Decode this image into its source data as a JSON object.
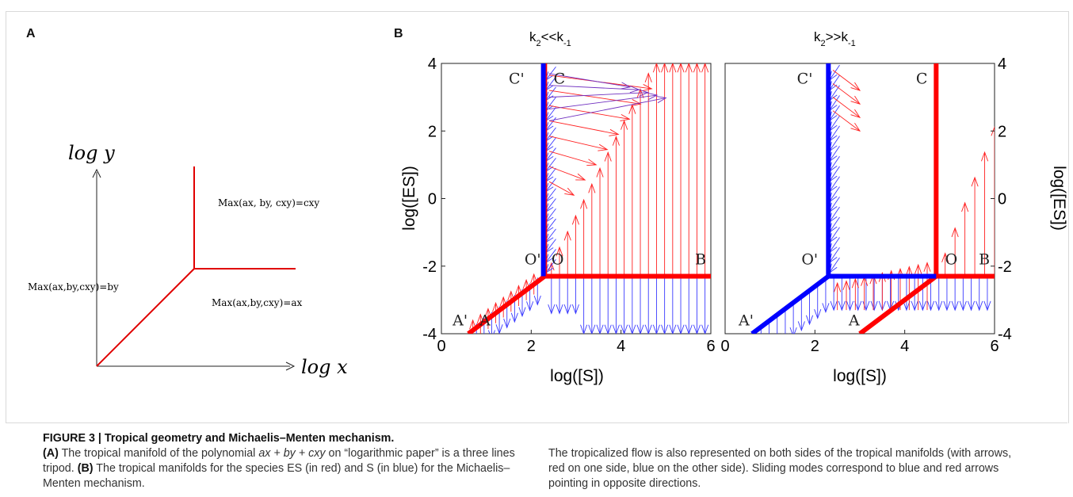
{
  "figure": {
    "panel_a_letter": "A",
    "panel_b_letter": "B",
    "caption_title": "FIGURE 3 | Tropical geometry and Michaelis–Menten mechanism.",
    "caption_a_label": "(A)",
    "caption_a_text_1": " The tropical manifold of the polynomial ",
    "caption_a_poly": "ax + by + cxy",
    "caption_a_text_2": " on “logarithmic paper” is a three lines tripod. ",
    "caption_b_label": "(B)",
    "caption_b_text": " The tropical manifolds for the species ES (in red) and S (in blue) for the Michaelis–Menten mechanism.",
    "caption_right": "The tropicalized flow is also represented on both sides of the tropical manifolds (with arrows, red on one side, blue on the other side). Sliding modes correspond to blue and red arrows pointing in opposite directions."
  },
  "panel_a": {
    "y_axis_label": "log y",
    "x_axis_label": "log x",
    "label_cxy": "Max(ax, by, cxy)=cxy",
    "label_by": "Max(ax,by,cxy)=by",
    "label_ax": "Max(ax,by,cxy)=ax",
    "line_color": "#e00000"
  },
  "chart_data": [
    {
      "type": "line",
      "title": "k2<<k-1",
      "title_main": "k",
      "title_sub1": "2",
      "title_rel": "<<k",
      "title_sub2": "-1",
      "xlabel": "log([S])",
      "ylabel": "log([ES])",
      "xlim": [
        0,
        6
      ],
      "ylim": [
        -4,
        4
      ],
      "xticks": [
        "0",
        "2",
        "4",
        "6"
      ],
      "yticks": [
        "-4",
        "-2",
        "0",
        "2",
        "4"
      ],
      "series": [
        {
          "color": "#ff0000",
          "x": [
            0.6,
            2.3,
            2.3,
            6
          ],
          "y": [
            -4,
            -2.3,
            4,
            -2.3
          ],
          "segments": [
            [
              [
                0.6,
                -4
              ],
              [
                2.3,
                -2.3
              ]
            ],
            [
              [
                2.3,
                -2.3
              ],
              [
                2.3,
                4
              ]
            ],
            [
              [
                2.3,
                -2.3
              ],
              [
                6,
                -2.3
              ]
            ]
          ]
        },
        {
          "color": "#0000ff",
          "x": [
            2.27,
            2.27
          ],
          "y": [
            -2.3,
            4
          ]
        }
      ],
      "points": [
        {
          "label": "C'",
          "x": 1.5,
          "y": 3.4
        },
        {
          "label": "C",
          "x": 2.5,
          "y": 3.4
        },
        {
          "label": "O'",
          "x": 1.85,
          "y": -1.95
        },
        {
          "label": "O",
          "x": 2.45,
          "y": -1.95
        },
        {
          "label": "B",
          "x": 5.65,
          "y": -1.95
        },
        {
          "label": "A'",
          "x": 0.25,
          "y": -3.75
        },
        {
          "label": "A",
          "x": 0.85,
          "y": -3.75
        }
      ]
    },
    {
      "type": "line",
      "title": "k2>>k-1",
      "title_main": "k",
      "title_sub1": "2",
      "title_rel": ">>k",
      "title_sub2": "-1",
      "xlabel": "log([S])",
      "ylabel": "log([ES])",
      "xlim": [
        0,
        6
      ],
      "ylim": [
        -4,
        4
      ],
      "xticks": [
        "0",
        "2",
        "4",
        "6"
      ],
      "yticks": [
        "-4",
        "-2",
        "0",
        "2",
        "4"
      ],
      "series": [
        {
          "color": "#ff0000",
          "segments": [
            [
              [
                3.0,
                -4
              ],
              [
                4.7,
                -2.3
              ]
            ],
            [
              [
                4.7,
                -2.3
              ],
              [
                4.7,
                4
              ]
            ],
            [
              [
                4.7,
                -2.3
              ],
              [
                6,
                -2.3
              ]
            ]
          ]
        },
        {
          "color": "#0000ff",
          "segments": [
            [
              [
                0.6,
                -4
              ],
              [
                2.3,
                -2.3
              ]
            ],
            [
              [
                2.3,
                -2.3
              ],
              [
                2.3,
                4
              ]
            ],
            [
              [
                2.3,
                -2.3
              ],
              [
                4.7,
                -2.3
              ]
            ]
          ]
        }
      ],
      "points": [
        {
          "label": "C'",
          "x": 1.6,
          "y": 3.4
        },
        {
          "label": "C",
          "x": 4.25,
          "y": 3.4
        },
        {
          "label": "O'",
          "x": 1.7,
          "y": -1.95
        },
        {
          "label": "O",
          "x": 4.9,
          "y": -1.95
        },
        {
          "label": "B",
          "x": 5.65,
          "y": -1.95
        },
        {
          "label": "A'",
          "x": 0.3,
          "y": -3.75
        },
        {
          "label": "A",
          "x": 2.75,
          "y": -3.75
        }
      ]
    }
  ]
}
